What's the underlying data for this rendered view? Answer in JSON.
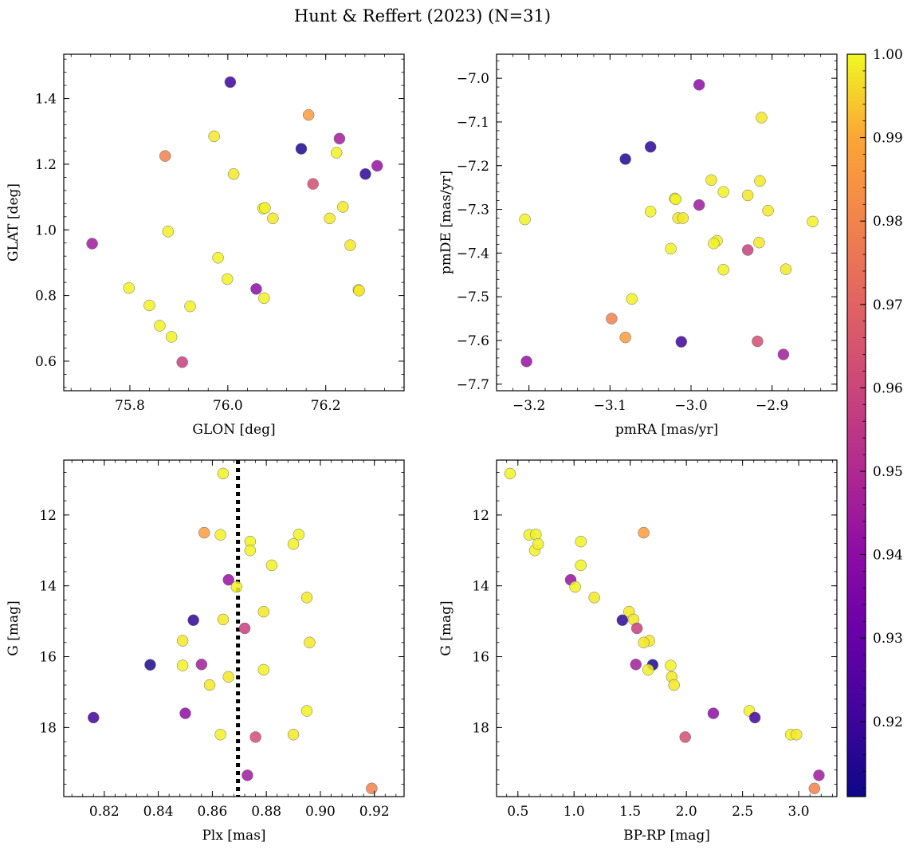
{
  "figure": {
    "title": "Hunt & Reffert (2023) (N=31)"
  },
  "colorbar": {
    "vmin": 0.911,
    "vmax": 1.0,
    "cmap": "plasma",
    "ticks": [
      0.92,
      0.93,
      0.94,
      0.95,
      0.96,
      0.97,
      0.98,
      0.99,
      1.0
    ],
    "tick_labels": [
      "0.92",
      "0.93",
      "0.94",
      "0.95",
      "0.96",
      "0.97",
      "0.98",
      "0.99",
      "1.00"
    ]
  },
  "chart_data": [
    {
      "type": "scatter",
      "name": "glon-glat",
      "xlabel": "GLON [deg]",
      "ylabel": "GLAT [deg]",
      "xlim": [
        75.665,
        76.36
      ],
      "ylim": [
        0.51,
        1.535
      ],
      "yinvert": false,
      "xticks": [
        75.8,
        76.0,
        76.2
      ],
      "xtick_labels": [
        "75.8",
        "76.0",
        "76.2"
      ],
      "yticks": [
        0.6,
        0.8,
        1.0,
        1.2,
        1.4
      ],
      "ytick_labels": [
        "0.6",
        "0.8",
        "1.0",
        "1.2",
        "1.4"
      ],
      "x": [
        76.005,
        76.165,
        75.972,
        75.872,
        76.15,
        76.222,
        76.281,
        76.305,
        76.174,
        76.012,
        76.072,
        76.076,
        76.092,
        76.235,
        76.208,
        75.723,
        75.878,
        76.25,
        75.98,
        75.999,
        76.058,
        76.267,
        75.798,
        76.074,
        75.84,
        75.923,
        75.861,
        75.885,
        75.907,
        76.228,
        76.268
      ],
      "y": [
        1.45,
        1.35,
        1.285,
        1.225,
        1.247,
        1.235,
        1.17,
        1.195,
        1.14,
        1.17,
        1.065,
        1.067,
        1.035,
        1.07,
        1.035,
        0.958,
        0.995,
        0.953,
        0.915,
        0.85,
        0.82,
        0.817,
        0.823,
        0.792,
        0.77,
        0.767,
        0.708,
        0.674,
        0.597,
        1.278,
        0.815
      ],
      "c": [
        0.921,
        0.987,
        0.998,
        0.979,
        0.914,
        0.999,
        0.917,
        0.942,
        0.963,
        0.998,
        0.999,
        0.999,
        0.998,
        0.998,
        0.998,
        0.945,
        0.999,
        0.998,
        0.999,
        0.999,
        0.94,
        0.998,
        0.999,
        0.999,
        0.999,
        0.999,
        0.999,
        0.999,
        0.958,
        0.946,
        0.998
      ]
    },
    {
      "type": "scatter",
      "name": "pmra-pmde",
      "xlabel": "pmRA [mas/yr]",
      "ylabel": "pmDE [mas/yr]",
      "xlim": [
        -3.24,
        -2.82
      ],
      "ylim": [
        -7.715,
        -6.945
      ],
      "yinvert": false,
      "xticks": [
        -3.2,
        -3.1,
        -3.0,
        -2.9
      ],
      "xtick_labels": [
        "−3.2",
        "−3.1",
        "−3.0",
        "−2.9"
      ],
      "yticks": [
        -7.7,
        -7.6,
        -7.5,
        -7.4,
        -7.3,
        -7.2,
        -7.1,
        -7.0
      ],
      "ytick_labels": [
        "−7.7",
        "−7.6",
        "−7.5",
        "−7.4",
        "−7.3",
        "−7.2",
        "−7.1",
        "−7.0"
      ],
      "x": [
        -2.99,
        -2.913,
        -3.081,
        -3.05,
        -2.975,
        -2.915,
        -2.96,
        -3.02,
        -3.019,
        -2.93,
        -3.05,
        -2.905,
        -3.016,
        -3.01,
        -2.85,
        -3.205,
        -2.99,
        -2.968,
        -2.972,
        -2.916,
        -3.025,
        -2.93,
        -2.96,
        -2.883,
        -3.073,
        -3.098,
        -3.081,
        -3.012,
        -2.918,
        -2.886,
        -3.203
      ],
      "y": [
        -7.015,
        -7.09,
        -7.185,
        -7.157,
        -7.233,
        -7.235,
        -7.26,
        -7.275,
        -7.277,
        -7.268,
        -7.305,
        -7.303,
        -7.32,
        -7.32,
        -7.328,
        -7.323,
        -7.29,
        -7.372,
        -7.378,
        -7.376,
        -7.39,
        -7.393,
        -7.438,
        -7.437,
        -7.505,
        -7.55,
        -7.593,
        -7.603,
        -7.602,
        -7.632,
        -7.648
      ],
      "c": [
        0.94,
        0.998,
        0.915,
        0.917,
        0.998,
        0.998,
        0.999,
        0.999,
        0.999,
        0.998,
        0.999,
        0.998,
        0.998,
        0.998,
        0.999,
        0.999,
        0.945,
        0.999,
        0.999,
        0.998,
        0.999,
        0.958,
        0.999,
        0.998,
        0.999,
        0.979,
        0.987,
        0.921,
        0.963,
        0.946,
        0.942
      ]
    },
    {
      "type": "scatter",
      "name": "plx-g",
      "xlabel": "Plx [mas]",
      "ylabel": "G [mag]",
      "xlim": [
        0.805,
        0.931
      ],
      "ylim": [
        19.95,
        10.45
      ],
      "yinvert": true,
      "xticks": [
        0.82,
        0.84,
        0.86,
        0.88,
        0.9,
        0.92
      ],
      "xtick_labels": [
        "0.82",
        "0.84",
        "0.86",
        "0.88",
        "0.90",
        "0.92"
      ],
      "yticks": [
        12,
        14,
        16,
        18
      ],
      "ytick_labels": [
        "12",
        "14",
        "16",
        "18"
      ],
      "vline": {
        "x": 0.8695,
        "style": "dotted"
      },
      "x": [
        0.864,
        0.857,
        0.863,
        0.874,
        0.874,
        0.892,
        0.89,
        0.882,
        0.866,
        0.869,
        0.895,
        0.879,
        0.853,
        0.864,
        0.872,
        0.849,
        0.896,
        0.837,
        0.849,
        0.856,
        0.879,
        0.866,
        0.859,
        0.895,
        0.816,
        0.85,
        0.863,
        0.89,
        0.876,
        0.873,
        0.919
      ],
      "y": [
        10.83,
        12.5,
        12.56,
        12.75,
        13.0,
        12.55,
        12.82,
        13.42,
        13.83,
        14.03,
        14.33,
        14.73,
        14.97,
        14.95,
        15.2,
        15.55,
        15.6,
        16.23,
        16.25,
        16.22,
        16.37,
        16.57,
        16.8,
        17.53,
        17.72,
        17.6,
        18.2,
        18.2,
        18.27,
        19.35,
        19.72
      ],
      "c": [
        0.999,
        0.987,
        0.999,
        0.999,
        0.999,
        0.999,
        0.999,
        0.999,
        0.942,
        0.999,
        0.998,
        0.998,
        0.917,
        0.998,
        0.958,
        0.998,
        0.998,
        0.914,
        0.999,
        0.946,
        0.999,
        0.998,
        0.998,
        0.999,
        0.921,
        0.94,
        0.999,
        0.998,
        0.963,
        0.945,
        0.979
      ]
    },
    {
      "type": "scatter",
      "name": "bprp-g",
      "xlabel": "BP-RP [mag]",
      "ylabel": "G [mag]",
      "xlim": [
        0.31,
        3.34
      ],
      "ylim": [
        19.95,
        10.45
      ],
      "yinvert": true,
      "xticks": [
        0.5,
        1.0,
        1.5,
        2.0,
        2.5,
        3.0
      ],
      "xtick_labels": [
        "0.5",
        "1.0",
        "1.5",
        "2.0",
        "2.5",
        "3.0"
      ],
      "yticks": [
        12,
        14,
        16,
        18
      ],
      "ytick_labels": [
        "12",
        "14",
        "16",
        "18"
      ],
      "x": [
        0.43,
        1.62,
        0.6,
        0.66,
        0.65,
        0.68,
        1.06,
        1.06,
        0.97,
        1.01,
        1.18,
        1.49,
        1.43,
        1.53,
        1.56,
        1.67,
        1.62,
        1.7,
        1.55,
        1.86,
        1.66,
        1.87,
        1.89,
        2.56,
        2.61,
        2.24,
        2.93,
        2.98,
        1.99,
        3.18,
        3.14
      ],
      "y": [
        10.83,
        12.5,
        12.56,
        12.55,
        13.0,
        12.82,
        12.75,
        13.42,
        13.83,
        14.03,
        14.33,
        14.73,
        14.97,
        14.95,
        15.2,
        15.55,
        15.6,
        16.23,
        16.22,
        16.25,
        16.37,
        16.57,
        16.8,
        17.53,
        17.72,
        17.6,
        18.2,
        18.2,
        18.27,
        19.35,
        19.72
      ],
      "c": [
        0.999,
        0.987,
        0.999,
        0.999,
        0.999,
        0.999,
        0.999,
        0.999,
        0.942,
        0.999,
        0.998,
        0.998,
        0.917,
        0.998,
        0.958,
        0.998,
        0.998,
        0.914,
        0.946,
        0.999,
        0.999,
        0.998,
        0.998,
        0.999,
        0.921,
        0.94,
        0.999,
        0.998,
        0.963,
        0.945,
        0.979
      ]
    }
  ]
}
